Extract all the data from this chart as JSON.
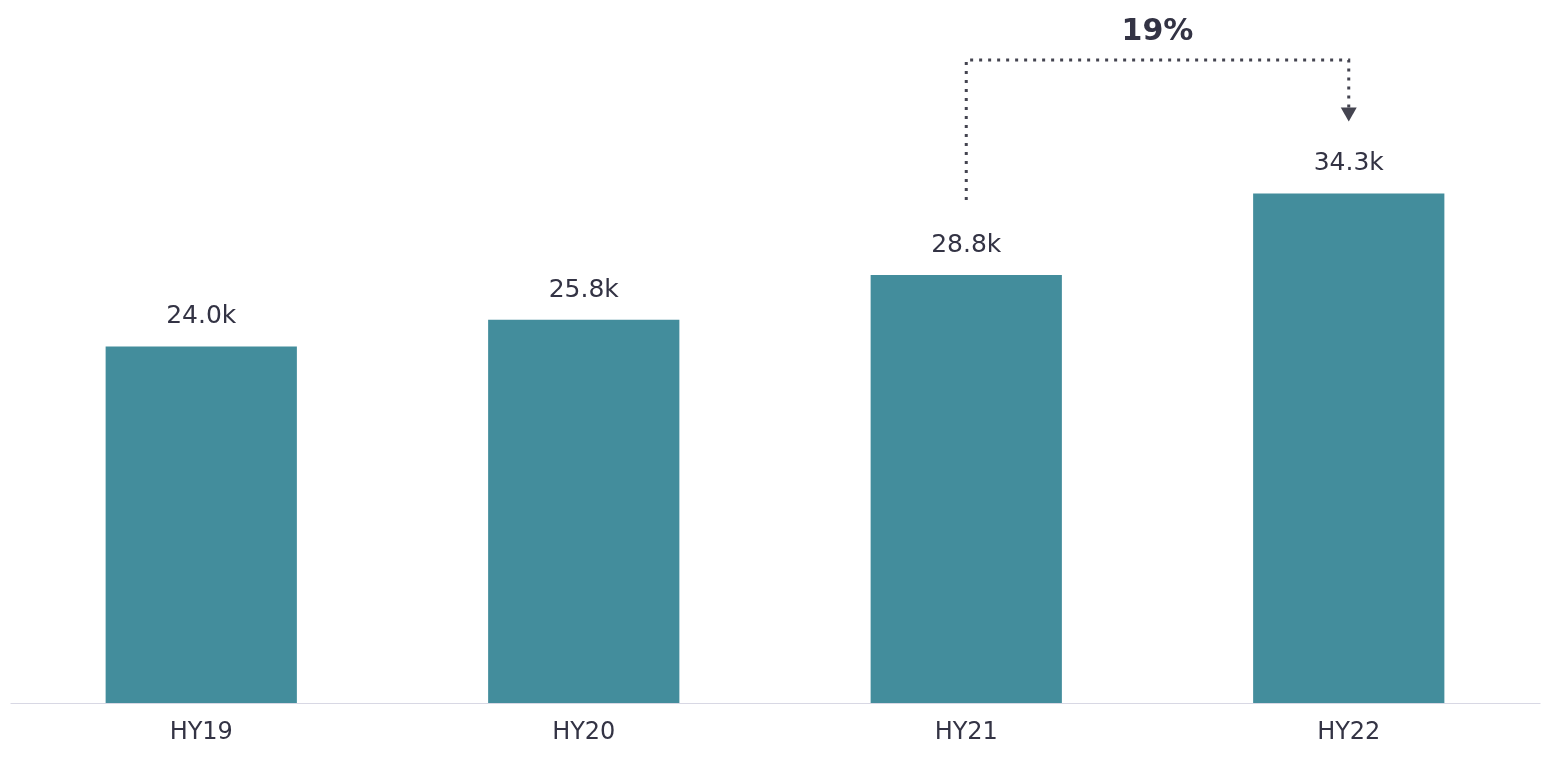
{
  "chart_data": {
    "type": "bar",
    "categories": [
      "HY19",
      "HY20",
      "HY21",
      "HY22"
    ],
    "values": [
      24.0,
      25.8,
      28.8,
      34.3
    ],
    "value_labels": [
      "24.0k",
      "25.8k",
      "28.8k",
      "34.3k"
    ],
    "color": "#438d9c",
    "annotations": [
      "19%"
    ]
  }
}
